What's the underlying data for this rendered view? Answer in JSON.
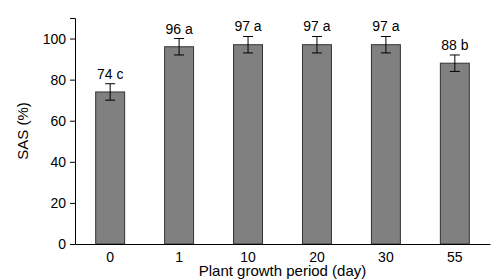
{
  "chart_data": {
    "type": "bar",
    "x_label": "Plant growth period (day)",
    "y_label": "SAS (%)",
    "categories": [
      "0",
      "1",
      "10",
      "20",
      "30",
      "55"
    ],
    "values": [
      74,
      96,
      97,
      97,
      97,
      88
    ],
    "errors": [
      4,
      4,
      4,
      4,
      4,
      4
    ],
    "value_labels": [
      "74 c",
      "96 a",
      "97 a",
      "97 a",
      "97 a",
      "88 b"
    ],
    "data_labels": true,
    "color": "#808080",
    "ylim": [
      0,
      110
    ],
    "yticks": [
      0,
      20,
      40,
      60,
      80,
      100
    ],
    "grid": false
  }
}
